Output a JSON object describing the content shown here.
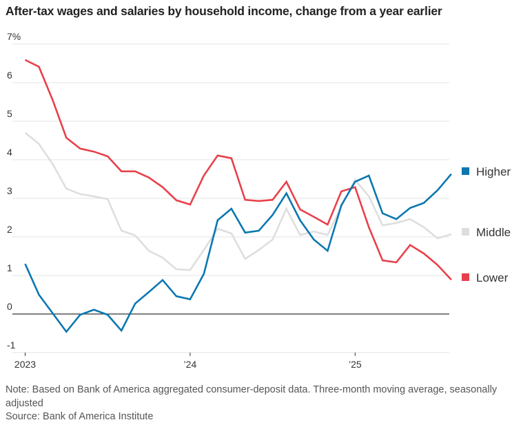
{
  "chart_data": {
    "type": "line",
    "title": "After-tax wages and salaries by household income, change from a year earlier",
    "xlabel": "",
    "ylabel": "",
    "ylim": [
      -1,
      7
    ],
    "y_ticks": [
      {
        "value": 7,
        "label": "7%"
      },
      {
        "value": 6,
        "label": "6"
      },
      {
        "value": 5,
        "label": "5"
      },
      {
        "value": 4,
        "label": "4"
      },
      {
        "value": 3,
        "label": "3"
      },
      {
        "value": 2,
        "label": "2"
      },
      {
        "value": 1,
        "label": "1"
      },
      {
        "value": 0,
        "label": "0"
      },
      {
        "value": -1,
        "label": "-1"
      }
    ],
    "x_ticks": [
      {
        "month_index": 0,
        "label": "2023"
      },
      {
        "month_index": 12,
        "label": "’24"
      },
      {
        "month_index": 24,
        "label": "’25"
      }
    ],
    "x_range_months": [
      0,
      31.6
    ],
    "grid": true,
    "legend_position": "right",
    "x": [
      0,
      1,
      2,
      3,
      4,
      5,
      6,
      7,
      8,
      9,
      10,
      11,
      12,
      13,
      14,
      15,
      16,
      17,
      18,
      19,
      20,
      21,
      22,
      23,
      24,
      25,
      26,
      27,
      28,
      29,
      30,
      31
    ],
    "series": [
      {
        "name": "Higher",
        "color": "#0a77b0",
        "values": [
          1.3,
          0.5,
          0.02,
          -0.46,
          -0.02,
          0.11,
          -0.02,
          -0.43,
          0.27,
          0.57,
          0.88,
          0.46,
          0.38,
          1.04,
          2.43,
          2.73,
          2.11,
          2.16,
          2.57,
          3.13,
          2.43,
          1.93,
          1.64,
          2.82,
          3.43,
          3.59,
          2.61,
          2.46,
          2.75,
          2.88,
          3.21,
          3.63
        ]
      },
      {
        "name": "Middle",
        "color": "#dedede",
        "values": [
          4.7,
          4.41,
          3.89,
          3.25,
          3.11,
          3.05,
          2.98,
          2.16,
          2.04,
          1.64,
          1.46,
          1.16,
          1.14,
          1.66,
          2.21,
          2.09,
          1.43,
          1.66,
          1.93,
          2.73,
          2.05,
          2.14,
          2.05,
          2.79,
          3.48,
          3.05,
          2.3,
          2.36,
          2.46,
          2.25,
          1.96,
          2.07
        ]
      },
      {
        "name": "Lower",
        "color": "#e8404a",
        "values": [
          6.59,
          6.41,
          5.55,
          4.57,
          4.29,
          4.21,
          4.09,
          3.7,
          3.7,
          3.54,
          3.29,
          2.95,
          2.84,
          3.59,
          4.11,
          4.04,
          2.96,
          2.93,
          2.96,
          3.43,
          2.71,
          2.52,
          2.32,
          3.18,
          3.29,
          2.25,
          1.39,
          1.34,
          1.79,
          1.57,
          1.27,
          0.89
        ]
      }
    ],
    "legend": [
      {
        "name": "Higher",
        "color": "#0a77b0"
      },
      {
        "name": "Middle",
        "color": "#dedede"
      },
      {
        "name": "Lower",
        "color": "#e8404a"
      }
    ],
    "note": "Note: Based on Bank of America aggregated consumer-deposit data. Three-month moving average, seasonally adjusted",
    "source": "Source: Bank of America Institute"
  }
}
